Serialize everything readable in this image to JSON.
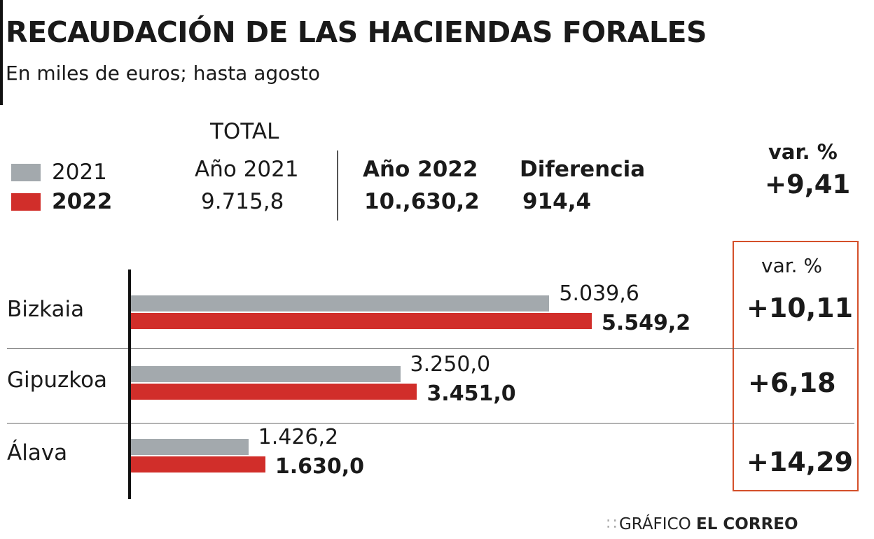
{
  "title": "RECAUDACIÓN DE LAS HACIENDAS FORALES",
  "subtitle": "En miles de euros; hasta agosto",
  "legend": [
    {
      "label": "2021",
      "color": "#a3a9ad"
    },
    {
      "label": "2022",
      "color": "#d12e2a"
    }
  ],
  "totals": {
    "header": "TOTAL",
    "y2021_label": "Año 2021",
    "y2021_value": "9.715,8",
    "y2022_label": "Año 2022",
    "y2022_value": "10.,630,2",
    "diff_label": "Diferencia",
    "diff_value": "914,4",
    "var_label": "var. %",
    "var_value": "+9,41"
  },
  "box_header": "var. %",
  "footer": {
    "prefix": "GRÁFICO",
    "brand": "EL CORREO"
  },
  "chart_data": {
    "type": "bar",
    "orientation": "horizontal",
    "title": "RECAUDACIÓN DE LAS HACIENDAS FORALES",
    "categories": [
      "Bizkaia",
      "Gipuzkoa",
      "Álava"
    ],
    "series": [
      {
        "name": "2021",
        "values": [
          5039.6,
          3250.0,
          1426.2
        ],
        "labels": [
          "5.039,6",
          "3.250,0",
          "1.426,2"
        ]
      },
      {
        "name": "2022",
        "values": [
          5549.2,
          3451.0,
          1630.0
        ],
        "labels": [
          "5.549,2",
          "3.451,0",
          "1.630,0"
        ]
      }
    ],
    "var_pct": [
      "+10,11",
      "+6,18",
      "+14,29"
    ],
    "xlim": [
      0,
      5549.2
    ]
  }
}
